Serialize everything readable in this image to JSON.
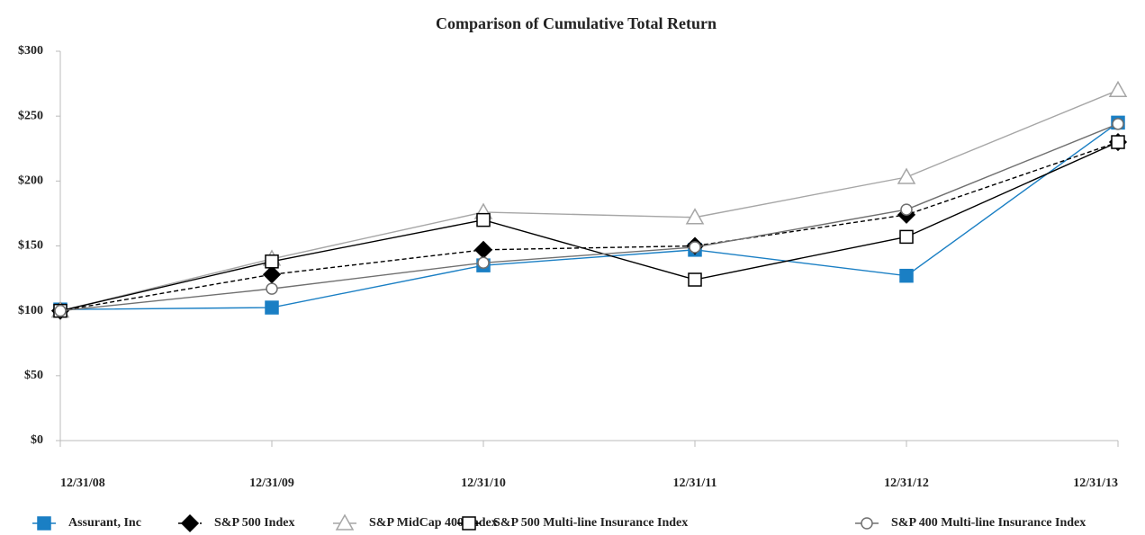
{
  "chart_data": {
    "type": "line",
    "title": "Comparison of Cumulative Total Return",
    "categories": [
      "12/31/08",
      "12/31/09",
      "12/31/10",
      "12/31/11",
      "12/31/12",
      "12/31/13"
    ],
    "series": [
      {
        "name": "Assurant, Inc",
        "color": "#1a7fc4",
        "marker": "square-filled",
        "dashed": false,
        "values": [
          101,
          102.5,
          135,
          147,
          127,
          245
        ]
      },
      {
        "name": "S&P 500 Index",
        "color": "#000000",
        "marker": "diamond-filled",
        "dashed": true,
        "values": [
          100,
          128,
          147,
          150,
          174,
          230
        ]
      },
      {
        "name": "S&P MidCap 400 Index",
        "color": "#a6a6a6",
        "marker": "triangle-open",
        "dashed": false,
        "values": [
          100,
          140,
          176,
          172,
          203,
          270
        ]
      },
      {
        "name": "S&P 500 Multi-line Insurance Index",
        "color": "#000000",
        "marker": "square-open",
        "dashed": false,
        "values": [
          100,
          138,
          170,
          124,
          157,
          230
        ]
      },
      {
        "name": "S&P 400 Multi-line Insurance Index",
        "color": "#707070",
        "marker": "circle-open",
        "dashed": false,
        "values": [
          100,
          117,
          137,
          149,
          178,
          244
        ]
      }
    ],
    "ylim": [
      0,
      300
    ],
    "yticks": [
      {
        "value": 0,
        "label": "$0"
      },
      {
        "value": 50,
        "label": "$50"
      },
      {
        "value": 100,
        "label": "$100"
      },
      {
        "value": 150,
        "label": "$150"
      },
      {
        "value": 200,
        "label": "$200"
      },
      {
        "value": 250,
        "label": "$250"
      },
      {
        "value": 300,
        "label": "$300"
      }
    ],
    "grid": false,
    "legend": "bottom"
  }
}
